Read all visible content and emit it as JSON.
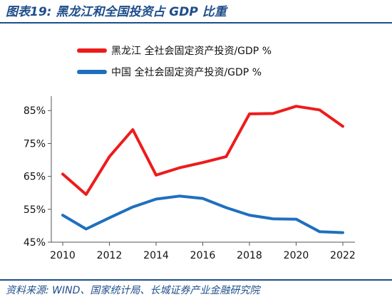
{
  "figure": {
    "title": "图表19:  黑龙江和全国投资占 GDP 比重",
    "source": "资料来源:  WIND、国家统计局、长城证券产业金融研究院"
  },
  "chart_data": {
    "type": "line",
    "title": "",
    "xlabel": "",
    "ylabel": "",
    "xlim": [
      2010,
      2022
    ],
    "ylim": [
      45,
      88
    ],
    "x_ticks": [
      "2010",
      "2012",
      "2014",
      "2016",
      "2018",
      "2020",
      "2022"
    ],
    "y_ticks": [
      {
        "value": 45,
        "label": "45%"
      },
      {
        "value": 55,
        "label": "55%"
      },
      {
        "value": 65,
        "label": "65%"
      },
      {
        "value": 75,
        "label": "75%"
      },
      {
        "value": 85,
        "label": "85%"
      }
    ],
    "grid": false,
    "legend": "top",
    "series": [
      {
        "name": "黑龙江 全社会固定资产投资/GDP %",
        "color": "#ee1b1b",
        "x": [
          2010,
          2011,
          2012,
          2013,
          2014,
          2015,
          2016,
          2017,
          2018,
          2019,
          2020,
          2021,
          2022
        ],
        "values": [
          65.7,
          59.5,
          71.0,
          79.2,
          65.4,
          67.6,
          69.2,
          71.0,
          84.0,
          84.1,
          86.3,
          85.2,
          80.2
        ]
      },
      {
        "name": "中国 全社会固定资产投资/GDP %",
        "color": "#1f6fbf",
        "x": [
          2010,
          2011,
          2012,
          2013,
          2014,
          2015,
          2016,
          2017,
          2018,
          2019,
          2020,
          2021,
          2022
        ],
        "values": [
          53.2,
          49.0,
          52.4,
          55.7,
          58.1,
          59.0,
          58.3,
          55.5,
          53.2,
          52.1,
          52.0,
          48.2,
          47.9
        ]
      }
    ]
  }
}
